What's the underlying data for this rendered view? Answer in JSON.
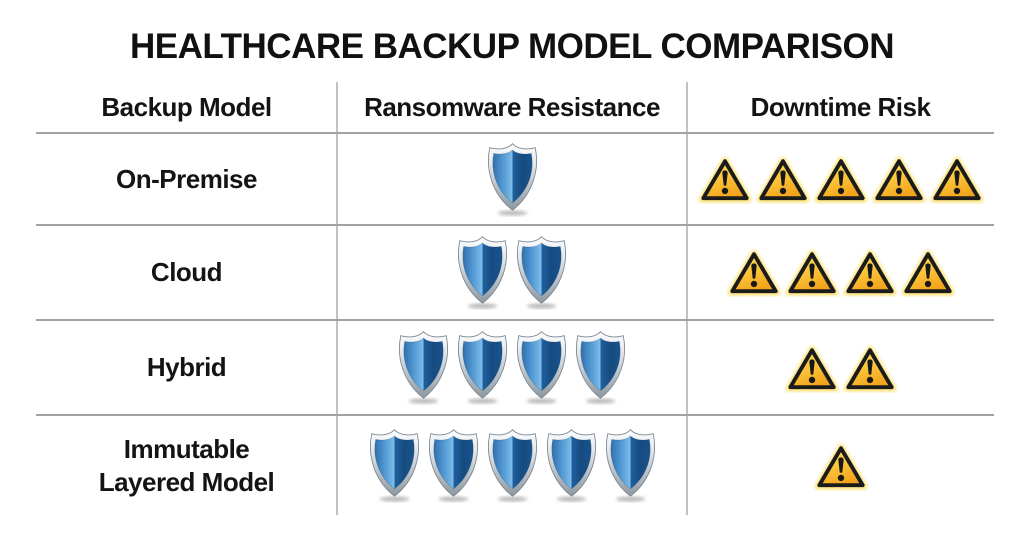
{
  "title": "HEALTHCARE BACKUP MODEL COMPARISON",
  "table": {
    "columns": [
      "Backup Model",
      "Ransomware Resistance",
      "Downtime Risk"
    ],
    "rows": [
      {
        "model": "On-Premise",
        "model_lines": [
          "On-Premise"
        ],
        "shields": 1,
        "warnings": 5
      },
      {
        "model": "Cloud",
        "model_lines": [
          "Cloud"
        ],
        "shields": 2,
        "warnings": 4
      },
      {
        "model": "Hybrid",
        "model_lines": [
          "Hybrid"
        ],
        "shields": 4,
        "warnings": 2
      },
      {
        "model": "Immutable Layered Model",
        "model_lines": [
          "Immutable",
          "Layered Model"
        ],
        "shields": 5,
        "warnings": 1
      }
    ]
  },
  "chart_data": {
    "type": "table",
    "title": "HEALTHCARE BACKUP MODEL COMPARISON",
    "categories": [
      "On-Premise",
      "Cloud",
      "Hybrid",
      "Immutable Layered Model"
    ],
    "series": [
      {
        "name": "Ransomware Resistance",
        "unit": "shield icons (1-5, higher = more resistant)",
        "values": [
          1,
          2,
          4,
          5
        ]
      },
      {
        "name": "Downtime Risk",
        "unit": "warning-triangle icons (1-5, higher = more risk)",
        "values": [
          5,
          4,
          2,
          1
        ]
      }
    ],
    "legend": "none",
    "notes": "icon-count comparison matrix; shields = blue metallic shield icons, warnings = yellow triangle exclamation icons"
  },
  "icons": {
    "shield": "blue metallic shield",
    "warning": "yellow warning triangle with exclamation mark"
  },
  "colors": {
    "background": "#ffffff",
    "text": "#141414",
    "grid_horizontal": "#a2a2a2",
    "grid_vertical": "#c2c2c2",
    "shield_blue_light": "#74b6e5",
    "shield_blue_dark": "#174b80",
    "shield_rim_silver": "#aeb7bf",
    "warning_yellow_light": "#ffe35c",
    "warning_yellow_dark": "#f2a51c",
    "warning_border": "#1b1b1b"
  }
}
